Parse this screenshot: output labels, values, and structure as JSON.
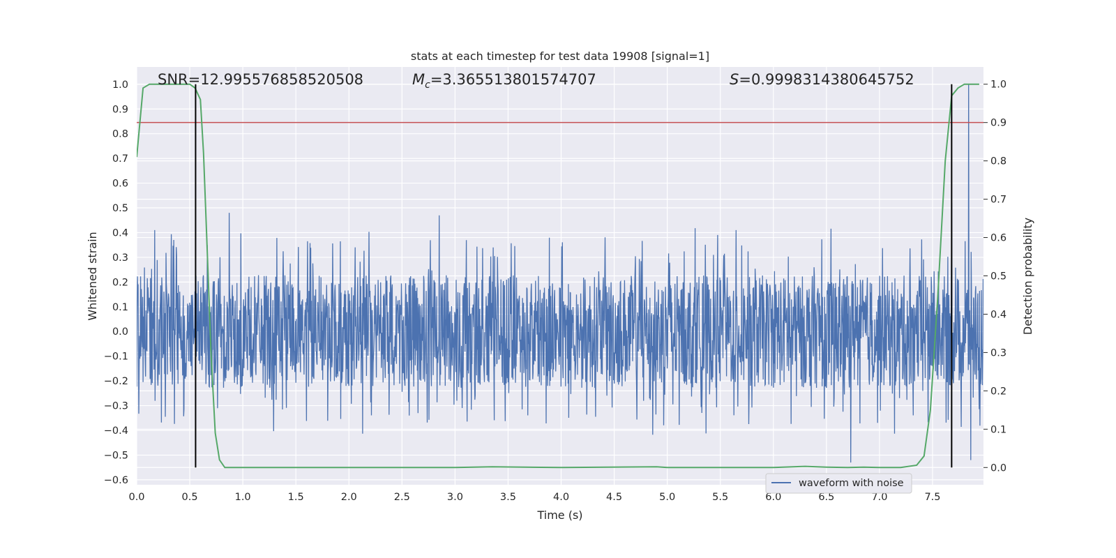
{
  "chart_data": {
    "type": "line",
    "title": "stats at each timestep for test data 19908 [signal=1]",
    "xlabel": "Time (s)",
    "ylabel_left": "Whitened strain",
    "ylabel_right": "Detection probability",
    "xlim": [
      0.0,
      7.98
    ],
    "ylim_left": [
      -0.62,
      1.07
    ],
    "ylim_right": [
      -0.045,
      1.045
    ],
    "x_ticks": [
      0.0,
      0.5,
      1.0,
      1.5,
      2.0,
      2.5,
      3.0,
      3.5,
      4.0,
      4.5,
      5.0,
      5.5,
      6.0,
      6.5,
      7.0,
      7.5
    ],
    "x_tick_labels": [
      "0.0",
      "0.5",
      "1.0",
      "1.5",
      "2.0",
      "2.5",
      "3.0",
      "3.5",
      "4.0",
      "4.5",
      "5.0",
      "5.5",
      "6.0",
      "6.5",
      "7.0",
      "7.5"
    ],
    "y_left_ticks": [
      -0.6,
      -0.5,
      -0.4,
      -0.3,
      -0.2,
      -0.1,
      0.0,
      0.1,
      0.2,
      0.3,
      0.4,
      0.5,
      0.6,
      0.7,
      0.8,
      0.9,
      1.0
    ],
    "y_left_tick_labels": [
      "−0.6",
      "−0.5",
      "−0.4",
      "−0.3",
      "−0.2",
      "−0.1",
      "0.0",
      "0.1",
      "0.2",
      "0.3",
      "0.4",
      "0.5",
      "0.6",
      "0.7",
      "0.8",
      "0.9",
      "1.0"
    ],
    "y_right_ticks": [
      0.0,
      0.1,
      0.2,
      0.3,
      0.4,
      0.5,
      0.6,
      0.7,
      0.8,
      0.9,
      1.0
    ],
    "y_right_tick_labels": [
      "0.0",
      "0.1",
      "0.2",
      "0.3",
      "0.4",
      "0.5",
      "0.6",
      "0.7",
      "0.8",
      "0.9",
      "1.0"
    ],
    "grid": true,
    "legend": {
      "position": "lower-right",
      "entries": [
        {
          "label": "waveform with noise",
          "color": "#4c72b0"
        }
      ]
    },
    "annotations": {
      "snr_label": "SNR=12.995576858520508",
      "mc_symbol": "M",
      "mc_subscript": "c",
      "mc_value": "=3.365513801574707",
      "s_symbol": "S",
      "s_value": "=0.9998314380645752"
    },
    "series": [
      {
        "name": "waveform with noise",
        "axis": "left",
        "color": "#4c72b0",
        "noise_envelope": {
          "core_min": -0.24,
          "core_max": 0.24,
          "typical_peak_min": -0.45,
          "typical_peak_max": 0.48
        },
        "spikes": [
          [
            0.17,
            0.41
          ],
          [
            0.87,
            0.48
          ],
          [
            2.85,
            0.47
          ],
          [
            7.68,
            0.52
          ],
          [
            7.84,
            1.0
          ],
          [
            6.73,
            -0.53
          ],
          [
            7.86,
            -0.52
          ]
        ]
      },
      {
        "axis": "right",
        "color": "#55a868",
        "x": [
          0.0,
          0.06,
          0.12,
          0.2,
          0.3,
          0.4,
          0.5,
          0.55,
          0.6,
          0.63,
          0.66,
          0.7,
          0.74,
          0.78,
          0.83,
          1.0,
          2.0,
          3.0,
          3.35,
          4.0,
          4.9,
          5.0,
          5.5,
          6.0,
          6.3,
          6.5,
          6.7,
          6.85,
          7.0,
          7.2,
          7.35,
          7.42,
          7.48,
          7.55,
          7.62,
          7.68,
          7.74,
          7.8,
          7.85,
          7.9,
          7.94
        ],
        "y": [
          0.81,
          0.99,
          1.0,
          1.0,
          1.0,
          1.0,
          1.0,
          0.99,
          0.96,
          0.82,
          0.6,
          0.3,
          0.09,
          0.02,
          0.0,
          0.0,
          0.0,
          0.0,
          0.002,
          0.0,
          0.002,
          0.0,
          0.0,
          0.0,
          0.003,
          0.001,
          0.0,
          0.001,
          0.0,
          0.0,
          0.006,
          0.03,
          0.15,
          0.45,
          0.8,
          0.97,
          0.99,
          1.0,
          1.0,
          1.0,
          1.0
        ]
      }
    ],
    "reference_lines": {
      "threshold": {
        "axis": "right",
        "y": 0.9,
        "color": "#c44e52"
      },
      "vertical": {
        "x": [
          0.555,
          7.68
        ],
        "ylim_right": [
          0.0,
          1.0
        ],
        "color": "#000000"
      }
    }
  }
}
